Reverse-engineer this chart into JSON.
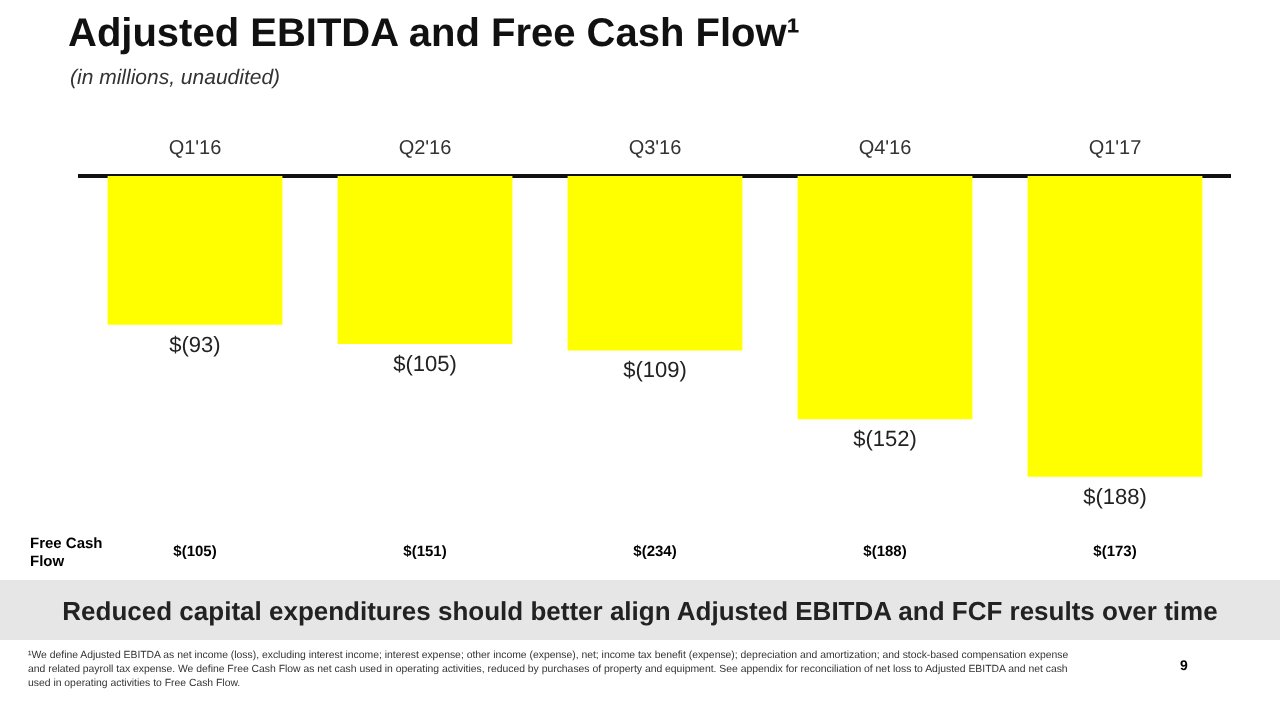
{
  "chart_data": {
    "type": "bar",
    "title": "Adjusted EBITDA and Free Cash Flow¹",
    "subtitle": "(in millions, unaudited)",
    "categories": [
      "Q1'16",
      "Q2'16",
      "Q3'16",
      "Q4'16",
      "Q1'17"
    ],
    "values": [
      -93,
      -105,
      -109,
      -152,
      -188
    ],
    "color": "#ffff00",
    "value_labels": [
      "$(93)",
      "$(105)",
      "$(109)",
      "$(152)",
      "$(188)"
    ],
    "grid": false,
    "legend": false,
    "annotations": [
      "Free Cash Flow",
      "Reduced capital expenditures should better align Adjusted EBITDA and FCF results over time",
      "¹We define Adjusted EBITDA as net income (loss), excluding interest income; interest expense; other income (expense), net; income tax benefit (expense); depreciation and amortization; and stock-based compensation expense and related payroll tax expense. We define Free Cash Flow as net cash used in operating activities, reduced by purchases of property and equipment. See appendix for reconciliation of net loss to Adjusted EBITDA and net cash used in operating activities to Free Cash Flow.",
      "9",
      "$(105)",
      "$(151)",
      "$(234)",
      "$(188)",
      "$(173)"
    ]
  }
}
